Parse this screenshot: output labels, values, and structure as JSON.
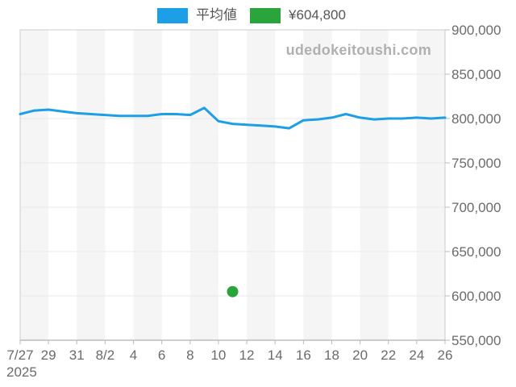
{
  "legend": {
    "series1_label": "平均値",
    "series2_label": "¥604,800",
    "series1_color": "#1d9fe8",
    "series2_color": "#2aa53c"
  },
  "watermark": "udedokeitoushi.com",
  "axis": {
    "year_label": "2025"
  },
  "colors": {
    "stripe": "#f5f5f5",
    "plot_border": "#cccccc",
    "bottom_axis": "#9e9e9e",
    "gridline": "#e9e9e9",
    "tick": "#bbbbbb",
    "tick_text": "#6b6b6b",
    "line_blue": "#1d9fe8",
    "dot_green": "#2aa53c"
  },
  "chart_data": {
    "type": "line",
    "title": "",
    "xlabel": "",
    "ylabel": "",
    "ylim": [
      550000,
      900000
    ],
    "y_tick_step": 50000,
    "y_tick_labels": [
      "550,000",
      "600,000",
      "650,000",
      "700,000",
      "750,000",
      "800,000",
      "850,000",
      "900,000"
    ],
    "x_tick_labels": [
      "7/27",
      "29",
      "31",
      "8/2",
      "4",
      "6",
      "8",
      "10",
      "12",
      "14",
      "16",
      "18",
      "20",
      "22",
      "24",
      "26"
    ],
    "x_year": "2025",
    "legend_position": "top-center",
    "grid": "horizontal",
    "dates": [
      "7/27",
      "7/28",
      "7/29",
      "7/30",
      "7/31",
      "8/1",
      "8/2",
      "8/3",
      "8/4",
      "8/5",
      "8/6",
      "8/7",
      "8/8",
      "8/9",
      "8/10",
      "8/11",
      "8/12",
      "8/13",
      "8/14",
      "8/15",
      "8/16",
      "8/17",
      "8/18",
      "8/19",
      "8/20",
      "8/21",
      "8/22",
      "8/23",
      "8/24",
      "8/25",
      "8/26"
    ],
    "series": [
      {
        "name": "平均値",
        "type": "line",
        "color": "#1d9fe8",
        "values": [
          805000,
          809000,
          810000,
          808000,
          806000,
          805000,
          804000,
          803000,
          803000,
          803000,
          805000,
          805000,
          804000,
          812000,
          797000,
          794000,
          793000,
          792000,
          791000,
          789000,
          798000,
          799000,
          801000,
          805000,
          801000,
          799000,
          800000,
          800000,
          801000,
          800000,
          801000
        ]
      },
      {
        "name": "¥604,800",
        "type": "point",
        "color": "#2aa53c",
        "date": "8/11",
        "value": 604800
      }
    ]
  }
}
